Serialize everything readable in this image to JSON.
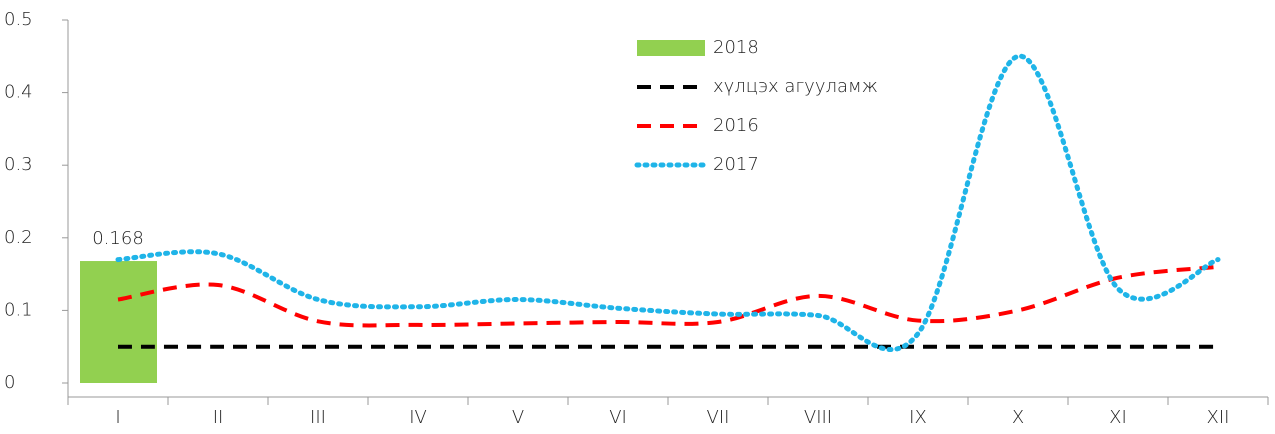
{
  "chart_data": {
    "type": "line",
    "categories": [
      "I",
      "II",
      "III",
      "IV",
      "V",
      "VI",
      "VII",
      "VIII",
      "IX",
      "X",
      "XI",
      "XII"
    ],
    "series": [
      {
        "name": "2018",
        "type": "bar",
        "color": "#92d050",
        "values": [
          0.168,
          null,
          null,
          null,
          null,
          null,
          null,
          null,
          null,
          null,
          null,
          null
        ]
      },
      {
        "name": "хүлцэх агууламж",
        "type": "line",
        "dash": "dash",
        "color": "#000000",
        "values": [
          0.05,
          0.05,
          0.05,
          0.05,
          0.05,
          0.05,
          0.05,
          0.05,
          0.05,
          0.05,
          0.05,
          0.05
        ]
      },
      {
        "name": "2016",
        "type": "line",
        "dash": "dash",
        "color": "#ff0000",
        "values": [
          0.115,
          0.135,
          0.085,
          0.08,
          0.082,
          0.084,
          0.084,
          0.12,
          0.086,
          0.1,
          0.145,
          0.16
        ]
      },
      {
        "name": "2017",
        "type": "line",
        "dash": "dot",
        "color": "#1fb4e8",
        "values": [
          0.17,
          0.178,
          0.115,
          0.105,
          0.115,
          0.103,
          0.095,
          0.093,
          0.068,
          0.45,
          0.13,
          0.17
        ]
      }
    ],
    "ylim": [
      0,
      0.5
    ],
    "yticks": [
      0,
      0.1,
      0.2,
      0.3,
      0.4,
      0.5
    ],
    "grid": false,
    "smooth": true
  }
}
